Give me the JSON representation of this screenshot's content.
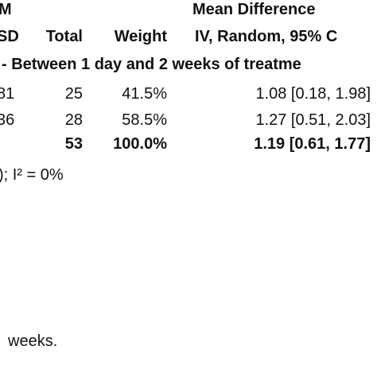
{
  "header": {
    "group_fragment": "M",
    "method_title": "Mean Difference",
    "col_sd": "SD",
    "col_total": "Total",
    "col_weight": "Weight",
    "col_method": "IV, Random, 95% C"
  },
  "subgroup": {
    "label": "- Between 1 day and 2 weeks of treatme"
  },
  "rows": [
    {
      "sd": "81",
      "total": "25",
      "weight": "41.5%",
      "ci": "1.08 [0.18, 1.98]"
    },
    {
      "sd": "36",
      "total": "28",
      "weight": "58.5%",
      "ci": "1.27 [0.51, 2.03]"
    }
  ],
  "subtotal": {
    "total": "53",
    "weight": "100.0%",
    "ci": "1.19 [0.61, 1.77]"
  },
  "heterogeneity": {
    "text": "); I² = 0%"
  },
  "footnote": {
    "text": "weeks."
  }
}
